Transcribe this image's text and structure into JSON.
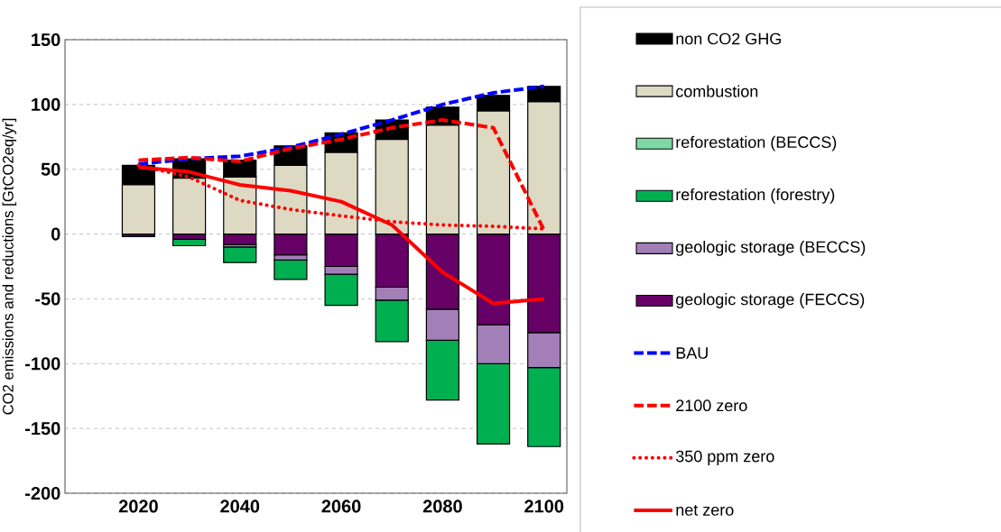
{
  "chart_data": {
    "type": "bar",
    "stacked": true,
    "ylabel": "CO2 emissions and reductions [GtCO2eq/yr]",
    "categories": [
      "2020",
      null,
      "2040",
      null,
      "2060",
      null,
      "2080",
      null,
      "2100"
    ],
    "ylim": [
      -200,
      150
    ],
    "yticks": [
      -200,
      -150,
      -100,
      -50,
      0,
      50,
      100,
      150
    ],
    "grid": "y",
    "legend": "right",
    "series": [
      {
        "name": "geologic storage (FECCS)",
        "color": "#660066",
        "values": [
          -2,
          -4,
          -8,
          -16,
          -25,
          -41,
          -58,
          -70,
          -76
        ]
      },
      {
        "name": "geologic storage (BECCS)",
        "color": "#a37fb8",
        "values": [
          0,
          0,
          -2,
          -4,
          -6,
          -10,
          -24,
          -30,
          -27
        ]
      },
      {
        "name": "reforestation (forestry)",
        "color": "#00b050",
        "values": [
          0,
          -5,
          -12,
          -15,
          -24,
          -32,
          -46,
          -62,
          -61
        ]
      },
      {
        "name": "reforestation (BECCS)",
        "color": "#7fd8a3",
        "values": [
          0,
          0,
          0,
          0,
          0,
          0,
          0,
          0,
          0
        ]
      },
      {
        "name": "combustion",
        "color": "#ddd9c3",
        "values": [
          38,
          43,
          44,
          53,
          63,
          73,
          84,
          95,
          102
        ]
      },
      {
        "name": "non CO2 GHG",
        "color": "#000000",
        "values": [
          15,
          15,
          13,
          15,
          15,
          15,
          14,
          12,
          12
        ]
      },
      {
        "name": "BAU",
        "type": "line",
        "line_style": "dashed",
        "color": "#0000ff",
        "values": [
          54,
          58,
          60,
          67,
          77,
          88,
          100,
          109,
          114
        ]
      },
      {
        "name": "2100 zero",
        "type": "line",
        "line_style": "dashed",
        "color": "#ff0000",
        "values": [
          57,
          59,
          56,
          66,
          73,
          82,
          88,
          82,
          3
        ]
      },
      {
        "name": "350 ppm zero",
        "type": "line",
        "line_style": "dotted",
        "color": "#ff0000",
        "values": [
          53,
          44,
          26,
          19,
          14,
          9.5,
          7,
          6,
          4
        ]
      },
      {
        "name": "net zero",
        "type": "line",
        "line_style": "solid",
        "color": "#ff0000",
        "values": [
          51.5,
          48,
          38,
          33.5,
          25,
          7,
          -29.5,
          -53.5,
          -50
        ]
      }
    ]
  }
}
